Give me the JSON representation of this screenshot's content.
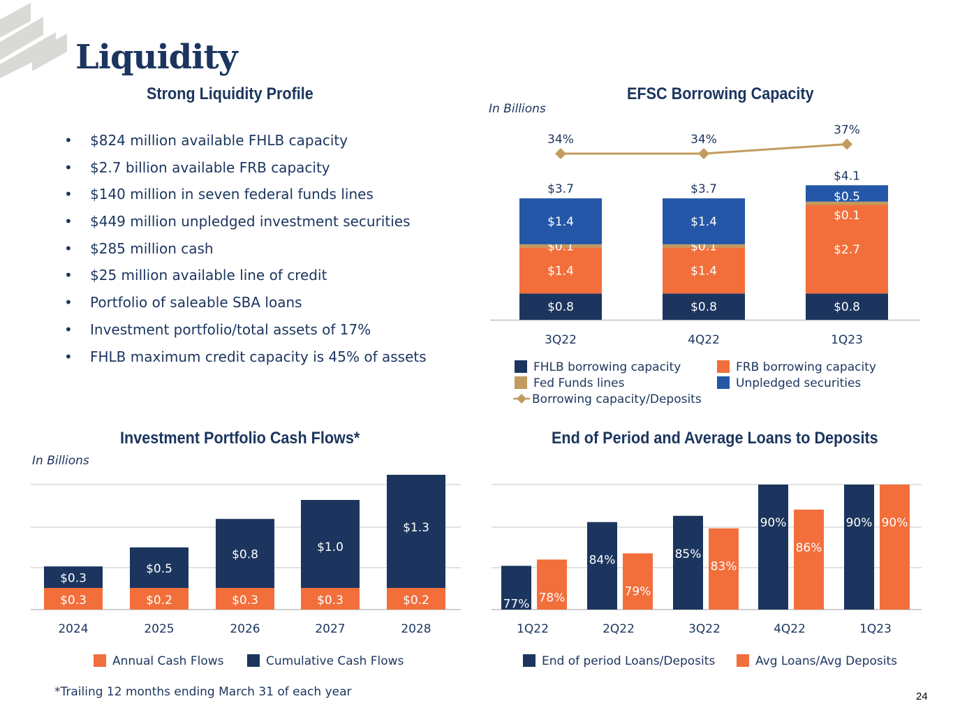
{
  "page": {
    "title": "Liquidity",
    "footnote": "*Trailing 12 months ending March 31 of each year",
    "page_number": "24"
  },
  "colors": {
    "navy": "#1b355e",
    "orange": "#f26f3b",
    "tan": "#c29b5e",
    "blue": "#2457a7",
    "grid": "#d9d9d9",
    "logo_gray": "#d9d9d6"
  },
  "profile": {
    "title": "Strong Liquidity Profile",
    "bullets": [
      "$824 million available FHLB capacity",
      "$2.7 billion available FRB capacity",
      "$140 million in seven federal funds lines",
      "$449 million unpledged investment securities",
      "$285 million cash",
      "$25 million available line of credit",
      "Portfolio of saleable SBA loans",
      "Investment portfolio/total assets of 17%",
      "FHLB maximum credit capacity is 45% of assets"
    ]
  },
  "chart_data": [
    {
      "id": "borrowing",
      "type": "bar",
      "stacked": true,
      "title": "EFSC Borrowing Capacity",
      "units_note": "In Billions",
      "categories": [
        "3Q22",
        "4Q22",
        "1Q23"
      ],
      "series": [
        {
          "name": "FHLB borrowing capacity",
          "color": "#1b355e",
          "values": [
            0.8,
            0.8,
            0.8
          ],
          "labels": [
            "$0.8",
            "$0.8",
            "$0.8"
          ]
        },
        {
          "name": "FRB borrowing capacity",
          "color": "#f26f3b",
          "values": [
            1.4,
            1.4,
            2.7
          ],
          "labels": [
            "$1.4",
            "$1.4",
            "$2.7"
          ]
        },
        {
          "name": "Fed Funds lines",
          "color": "#c29b5e",
          "values": [
            0.1,
            0.1,
            0.1
          ],
          "labels": [
            "$0.1",
            "$0.1",
            "$0.1"
          ]
        },
        {
          "name": "Unpledged securities",
          "color": "#2457a7",
          "values": [
            1.4,
            1.4,
            0.5
          ],
          "labels": [
            "$1.4",
            "$1.4",
            "$0.5"
          ]
        }
      ],
      "totals": [
        "$3.7",
        "$3.7",
        "$4.1"
      ],
      "line_series": {
        "name": "Borrowing capacity/Deposits",
        "color": "#c29b5e",
        "values": [
          34,
          34,
          37
        ],
        "labels": [
          "34%",
          "34%",
          "37%"
        ]
      },
      "legend": [
        {
          "label": "FHLB borrowing capacity",
          "color": "#1b355e",
          "marker": "square"
        },
        {
          "label": "FRB borrowing capacity",
          "color": "#f26f3b",
          "marker": "square"
        },
        {
          "label": "Fed Funds lines",
          "color": "#c29b5e",
          "marker": "square"
        },
        {
          "label": "Unpledged securities",
          "color": "#2457a7",
          "marker": "square"
        },
        {
          "label": "Borrowing capacity/Deposits",
          "color": "#c29b5e",
          "marker": "diamond-line"
        }
      ]
    },
    {
      "id": "cashflows",
      "type": "bar",
      "stacked": true,
      "title": "Investment Portfolio Cash Flows*",
      "units_note": "In Billions",
      "categories": [
        "2024",
        "2025",
        "2026",
        "2027",
        "2028"
      ],
      "series": [
        {
          "name": "Annual Cash Flows",
          "color": "#f26f3b",
          "values": [
            0.3,
            0.2,
            0.3,
            0.3,
            0.2
          ],
          "labels": [
            "$0.3",
            "$0.2",
            "$0.3",
            "$0.3",
            "$0.2"
          ]
        },
        {
          "name": "Cumulative Cash Flows",
          "color": "#1b355e",
          "values": [
            0.3,
            0.5,
            0.8,
            1.0,
            1.3
          ],
          "labels": [
            "$0.3",
            "$0.5",
            "$0.8",
            "$1.0",
            "$1.3"
          ]
        }
      ],
      "grid": true,
      "legend": [
        {
          "label": "Annual Cash Flows",
          "color": "#f26f3b",
          "marker": "square"
        },
        {
          "label": "Cumulative Cash Flows",
          "color": "#1b355e",
          "marker": "square"
        }
      ]
    },
    {
      "id": "loans",
      "type": "bar",
      "stacked": false,
      "title": "End of Period and Average Loans to Deposits",
      "categories": [
        "1Q22",
        "2Q22",
        "3Q22",
        "4Q22",
        "1Q23"
      ],
      "series": [
        {
          "name": "End of period Loans/Deposits",
          "color": "#1b355e",
          "values": [
            77,
            84,
            85,
            90,
            90
          ],
          "labels": [
            "77%",
            "84%",
            "85%",
            "90%",
            "90%"
          ]
        },
        {
          "name": "Avg Loans/Avg Deposits",
          "color": "#f26f3b",
          "values": [
            78,
            79,
            83,
            86,
            90
          ],
          "labels": [
            "78%",
            "79%",
            "83%",
            "86%",
            "90%"
          ]
        }
      ],
      "grid": true,
      "legend": [
        {
          "label": "End of period Loans/Deposits",
          "color": "#1b355e",
          "marker": "square"
        },
        {
          "label": "Avg Loans/Avg Deposits",
          "color": "#f26f3b",
          "marker": "square"
        }
      ]
    }
  ]
}
